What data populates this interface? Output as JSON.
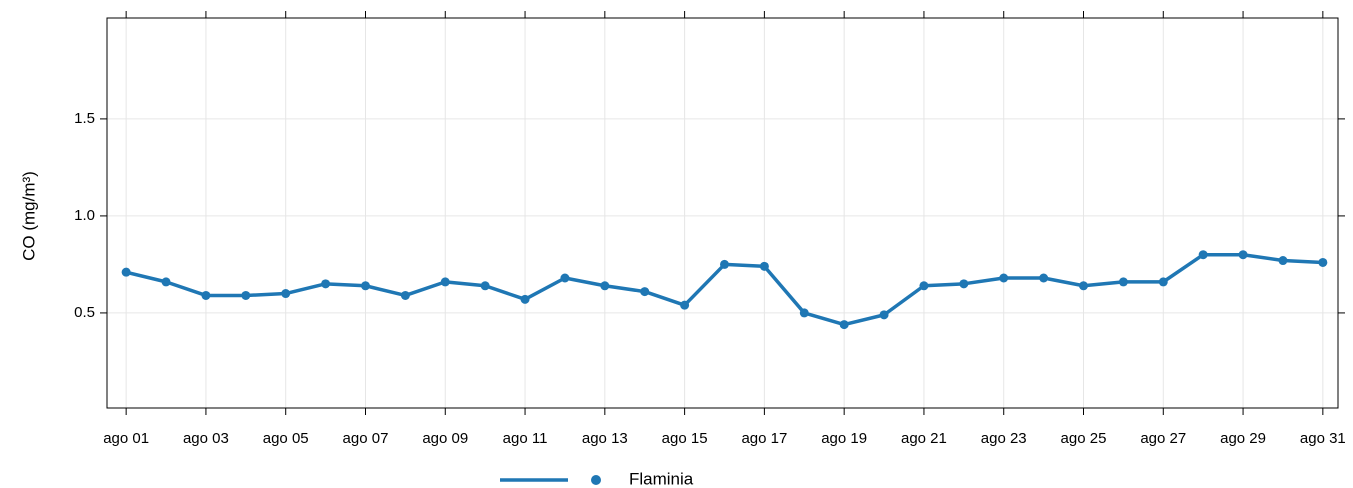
{
  "chart_data": {
    "type": "line",
    "y_label": "CO (mg/m³)",
    "x": [
      1,
      2,
      3,
      4,
      5,
      6,
      7,
      8,
      9,
      10,
      11,
      12,
      13,
      14,
      15,
      16,
      17,
      18,
      19,
      20,
      21,
      22,
      23,
      24,
      25,
      26,
      27,
      28,
      29,
      30,
      31
    ],
    "series": [
      {
        "name": "Flaminia",
        "color": "#1f77b4",
        "values": [
          0.71,
          0.66,
          0.59,
          0.59,
          0.6,
          0.65,
          0.64,
          0.59,
          0.66,
          0.64,
          0.57,
          0.68,
          0.64,
          0.61,
          0.54,
          0.75,
          0.74,
          0.5,
          0.44,
          0.49,
          0.64,
          0.65,
          0.68,
          0.68,
          0.64,
          0.66,
          0.66,
          0.8,
          0.8,
          0.77,
          0.76
        ]
      }
    ],
    "xlim": [
      0.52,
      31.38
    ],
    "xticks": [
      {
        "value": 1,
        "label": "ago 01"
      },
      {
        "value": 3,
        "label": "ago 03"
      },
      {
        "value": 5,
        "label": "ago 05"
      },
      {
        "value": 7,
        "label": "ago 07"
      },
      {
        "value": 9,
        "label": "ago 09"
      },
      {
        "value": 11,
        "label": "ago 11"
      },
      {
        "value": 13,
        "label": "ago 13"
      },
      {
        "value": 15,
        "label": "ago 15"
      },
      {
        "value": 17,
        "label": "ago 17"
      },
      {
        "value": 19,
        "label": "ago 19"
      },
      {
        "value": 21,
        "label": "ago 21"
      },
      {
        "value": 23,
        "label": "ago 23"
      },
      {
        "value": 25,
        "label": "ago 25"
      },
      {
        "value": 27,
        "label": "ago 27"
      },
      {
        "value": 29,
        "label": "ago 29"
      },
      {
        "value": 31,
        "label": "ago 31"
      }
    ],
    "ylim": [
      0.01,
      2.02
    ],
    "yticks": [
      0.5,
      {
        "value": 1.0,
        "label": "1.0"
      },
      1.5
    ],
    "grid": true,
    "legend": "bottom"
  }
}
